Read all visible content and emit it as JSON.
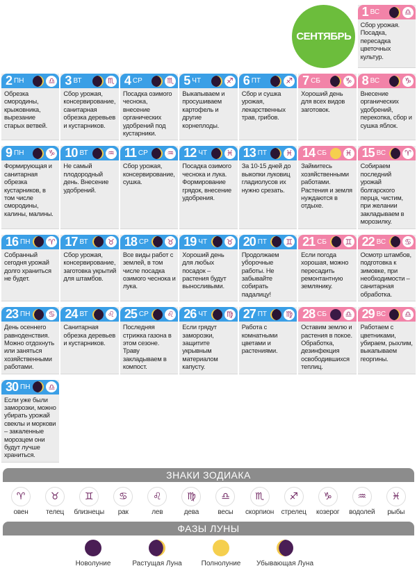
{
  "month": "СЕНТЯБРЬ",
  "colors": {
    "weekday": "#3a9fe6",
    "weekend": "#f283a8",
    "month_circle": "#6cbd3c"
  },
  "days": [
    {
      "num": "1",
      "dow": "ВС",
      "phase": "waxing",
      "sign": "libra",
      "weekend": true,
      "text": "Сбор урожая. Посадка, пересадка цветочных культур."
    },
    {
      "num": "2",
      "dow": "ПН",
      "phase": "waxing",
      "sign": "libra",
      "weekend": false,
      "text": "Обрезка смородины, крыжовника, вырезание старых ветвей."
    },
    {
      "num": "3",
      "dow": "ВТ",
      "phase": "waxing",
      "sign": "scorpio",
      "weekend": false,
      "text": "Сбор урожая, консервирование, санитарная обрезка деревьев и кустарников."
    },
    {
      "num": "4",
      "dow": "СР",
      "phase": "waxing",
      "sign": "scorpio",
      "weekend": false,
      "text": "Посадка озимого чеснока, внесение органических удобрений под кустарники."
    },
    {
      "num": "5",
      "dow": "ЧТ",
      "phase": "waxing",
      "sign": "sagittarius",
      "weekend": false,
      "text": "Выкапываем и просушиваем картофель и другие корнеплоды."
    },
    {
      "num": "6",
      "dow": "ПТ",
      "phase": "waxing",
      "sign": "sagittarius",
      "weekend": false,
      "text": "Сбор и сушка урожая, лекарственных трав, грибов."
    },
    {
      "num": "7",
      "dow": "СБ",
      "phase": "waxing",
      "sign": "capricorn",
      "weekend": true,
      "text": "Хороший день для всех видов заготовок."
    },
    {
      "num": "8",
      "dow": "ВС",
      "phase": "waxing",
      "sign": "capricorn",
      "weekend": true,
      "text": "Внесение органических удобрений, перекопка, сбор и сушка яблок."
    },
    {
      "num": "9",
      "dow": "ПН",
      "phase": "waxing",
      "sign": "capricorn",
      "weekend": false,
      "text": "Формирующая и санитарная обрезка кустарников, в том числе смородины, калины, малины."
    },
    {
      "num": "10",
      "dow": "ВТ",
      "phase": "waxing",
      "sign": "aquarius",
      "weekend": false,
      "text": "Не самый плодородный день. Внесение удобрений."
    },
    {
      "num": "11",
      "dow": "СР",
      "phase": "waxing",
      "sign": "aquarius",
      "weekend": false,
      "text": "Сбор урожая, консервирование, сушка."
    },
    {
      "num": "12",
      "dow": "ЧТ",
      "phase": "waxing",
      "sign": "pisces",
      "weekend": false,
      "text": "Посадка озимого чеснока и лука. Формирование грядок, внесение удобрения."
    },
    {
      "num": "13",
      "dow": "ПТ",
      "phase": "waxing",
      "sign": "pisces",
      "weekend": false,
      "text": "За 10-15 дней до выкопки луковиц гладиолусов их нужно срезать."
    },
    {
      "num": "14",
      "dow": "СБ",
      "phase": "full",
      "sign": "pisces",
      "weekend": true,
      "text": "Займитесь хозяйственными работами. Растения и земля нуждаются в отдыхе."
    },
    {
      "num": "15",
      "dow": "ВС",
      "phase": "waning",
      "sign": "aries",
      "weekend": true,
      "text": "Собираем последний урожай болгарского перца, чистим, при желании закладываем в морозилку."
    },
    {
      "num": "16",
      "dow": "ПН",
      "phase": "waning",
      "sign": "aries",
      "weekend": false,
      "text": "Собранный сегодня урожай долго храниться не будет."
    },
    {
      "num": "17",
      "dow": "ВТ",
      "phase": "waning",
      "sign": "taurus",
      "weekend": false,
      "text": "Сбор урожая, консервирование, заготовка укрытий для штамбов."
    },
    {
      "num": "18",
      "dow": "СР",
      "phase": "waning",
      "sign": "taurus",
      "weekend": false,
      "text": "Все виды работ с землей, в том числе посадка озимого чеснока и лука."
    },
    {
      "num": "19",
      "dow": "ЧТ",
      "phase": "waning",
      "sign": "taurus",
      "weekend": false,
      "text": "Хороший день для любых посадок – растения будут выносливыми."
    },
    {
      "num": "20",
      "dow": "ПТ",
      "phase": "waning",
      "sign": "gemini",
      "weekend": false,
      "text": "Продолжаем уборочные работы. Не забывайте собирать падалицу!"
    },
    {
      "num": "21",
      "dow": "СБ",
      "phase": "waning",
      "sign": "gemini",
      "weekend": true,
      "text": "Если погода хорошая, можно пересадить ремонтантную землянику."
    },
    {
      "num": "22",
      "dow": "ВС",
      "phase": "waning",
      "sign": "cancer",
      "weekend": true,
      "text": "Осмотр штамбов, подготовка к зимовке, при необходимости – санитарная обработка."
    },
    {
      "num": "23",
      "dow": "ПН",
      "phase": "waning",
      "sign": "cancer",
      "weekend": false,
      "text": "День осеннего равноденствия. Можно отдохнуть или заняться хозяйственными работами."
    },
    {
      "num": "24",
      "dow": "ВТ",
      "phase": "waning",
      "sign": "leo",
      "weekend": false,
      "text": "Санитарная обрезка деревьев и кустарников."
    },
    {
      "num": "25",
      "dow": "СР",
      "phase": "waning",
      "sign": "leo",
      "weekend": false,
      "text": "Последняя стрижка газона в этом сезоне. Траву закладываем в компост."
    },
    {
      "num": "26",
      "dow": "ЧТ",
      "phase": "waning",
      "sign": "virgo",
      "weekend": false,
      "text": "Если грядут заморозки, защитите укрывным материалом капусту."
    },
    {
      "num": "27",
      "dow": "ПТ",
      "phase": "waning",
      "sign": "virgo",
      "weekend": false,
      "text": "Работа с комнатными цветами и растениями."
    },
    {
      "num": "28",
      "dow": "СБ",
      "phase": "new",
      "sign": "libra",
      "weekend": true,
      "text": "Оставим землю и растения в покое. Обработка, дезинфекция освободившихся теплиц."
    },
    {
      "num": "29",
      "dow": "ВС",
      "phase": "waxing",
      "sign": "libra",
      "weekend": true,
      "text": "Работаем с цветниками, убираем, рыхлим, выкапываем георгины."
    },
    {
      "num": "30",
      "dow": "ПН",
      "phase": "waxing",
      "sign": "libra",
      "weekend": false,
      "text": "Если уже были заморозки, можно убирать урожай свеклы и моркови – закаленные морозцем они будут лучше храниться."
    }
  ],
  "zodiac": {
    "title": "ЗНАКИ ЗОДИАКА",
    "signs": [
      {
        "id": "aries",
        "glyph": "♈︎",
        "label": "овен"
      },
      {
        "id": "taurus",
        "glyph": "♉︎",
        "label": "телец"
      },
      {
        "id": "gemini",
        "glyph": "♊︎",
        "label": "близнецы"
      },
      {
        "id": "cancer",
        "glyph": "♋︎",
        "label": "рак"
      },
      {
        "id": "leo",
        "glyph": "♌︎",
        "label": "лев"
      },
      {
        "id": "virgo",
        "glyph": "♍︎",
        "label": "дева"
      },
      {
        "id": "libra",
        "glyph": "♎︎",
        "label": "весы"
      },
      {
        "id": "scorpio",
        "glyph": "♏︎",
        "label": "скорпион"
      },
      {
        "id": "sagittarius",
        "glyph": "♐︎",
        "label": "стрелец"
      },
      {
        "id": "capricorn",
        "glyph": "♑︎",
        "label": "козерог"
      },
      {
        "id": "aquarius",
        "glyph": "♒︎",
        "label": "водолей"
      },
      {
        "id": "pisces",
        "glyph": "♓︎",
        "label": "рыбы"
      }
    ]
  },
  "moon_phases": {
    "title": "ФАЗЫ ЛУНЫ",
    "phases": [
      {
        "id": "new",
        "label": "Новолуние"
      },
      {
        "id": "waxing",
        "label": "Растущая Луна"
      },
      {
        "id": "full",
        "label": "Полнолуние"
      },
      {
        "id": "waning",
        "label": "Убывающая Луна"
      }
    ]
  }
}
